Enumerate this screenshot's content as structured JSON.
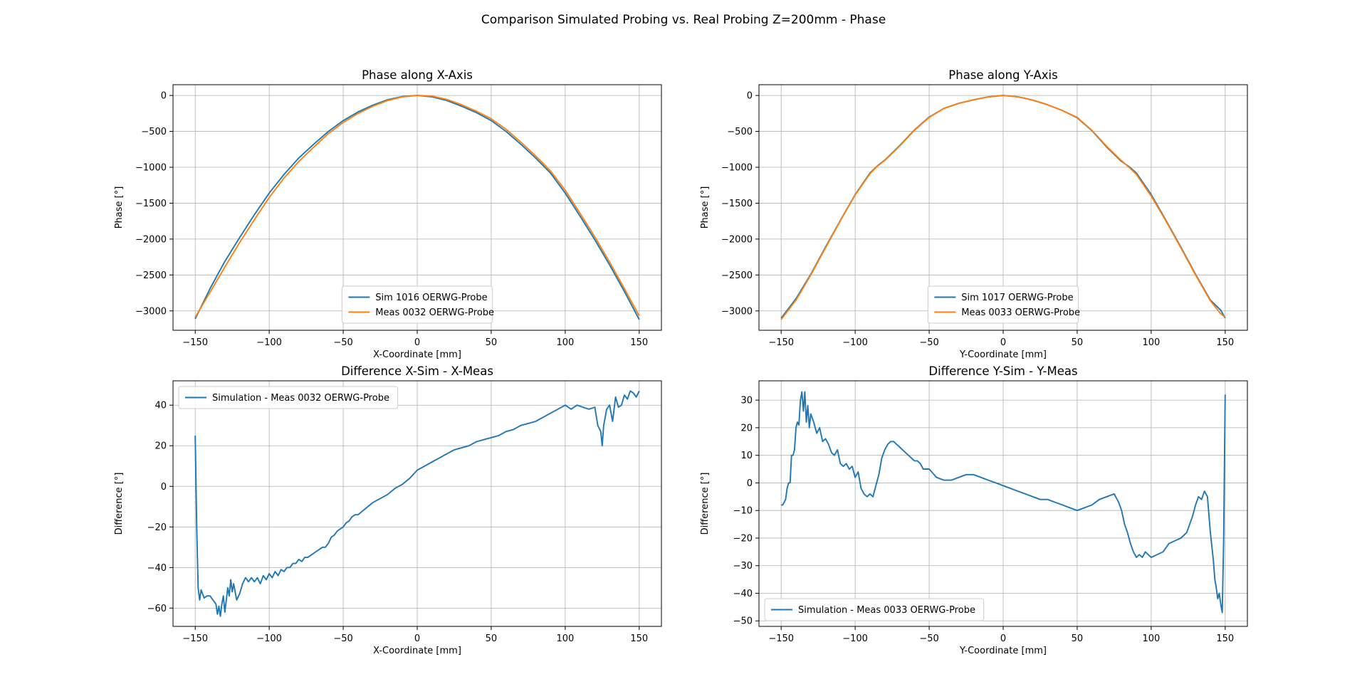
{
  "figure": {
    "suptitle": "Comparison Simulated Probing vs. Real Probing Z=200mm - Phase"
  },
  "colors": {
    "series1": "#1f77b4",
    "series2": "#ff7f0e",
    "grid": "#b0b0b0"
  },
  "chart_data": [
    {
      "type": "line",
      "title": "Phase along X-Axis",
      "xlabel": "X-Coordinate [mm]",
      "ylabel": "Phase [°]",
      "xlim": [
        -165,
        165
      ],
      "ylim": [
        -3270,
        150
      ],
      "xticks": [
        -150,
        -100,
        -50,
        0,
        50,
        100,
        150
      ],
      "xtick_labels": [
        "−150",
        "−100",
        "−50",
        "0",
        "50",
        "100",
        "150"
      ],
      "yticks": [
        0,
        -500,
        -1000,
        -1500,
        -2000,
        -2500,
        -3000
      ],
      "ytick_labels": [
        "0",
        "−500",
        "−1000",
        "−1500",
        "−2000",
        "−2500",
        "−3000"
      ],
      "grid": true,
      "legend": "lower center",
      "series": [
        {
          "name": "Sim 1016 OERWG-Probe",
          "x": [
            -150,
            -140,
            -130,
            -120,
            -110,
            -100,
            -90,
            -80,
            -70,
            -60,
            -50,
            -40,
            -30,
            -20,
            -10,
            0,
            10,
            20,
            30,
            40,
            50,
            60,
            70,
            80,
            90,
            100,
            110,
            120,
            130,
            140,
            150
          ],
          "y": [
            -3110,
            -2690,
            -2310,
            -1980,
            -1660,
            -1360,
            -1100,
            -870,
            -680,
            -500,
            -350,
            -230,
            -135,
            -60,
            -15,
            0,
            -20,
            -70,
            -150,
            -240,
            -350,
            -500,
            -680,
            -870,
            -1080,
            -1360,
            -1680,
            -2010,
            -2360,
            -2730,
            -3120
          ]
        },
        {
          "name": "Meas 0032 OERWG-Probe",
          "x": [
            -150,
            -140,
            -130,
            -120,
            -110,
            -100,
            -90,
            -80,
            -70,
            -60,
            -50,
            -40,
            -30,
            -20,
            -10,
            0,
            10,
            20,
            30,
            40,
            50,
            60,
            70,
            80,
            90,
            100,
            110,
            120,
            130,
            140,
            150
          ],
          "y": [
            -3090,
            -2740,
            -2390,
            -2050,
            -1730,
            -1420,
            -1150,
            -920,
            -720,
            -530,
            -375,
            -250,
            -150,
            -70,
            -20,
            0,
            -10,
            -55,
            -130,
            -220,
            -325,
            -470,
            -650,
            -840,
            -1050,
            -1320,
            -1640,
            -1970,
            -2320,
            -2690,
            -3070
          ]
        }
      ]
    },
    {
      "type": "line",
      "title": "Phase along Y-Axis",
      "xlabel": "Y-Coordinate [mm]",
      "ylabel": "Phase [°]",
      "xlim": [
        -165,
        165
      ],
      "ylim": [
        -3270,
        150
      ],
      "xticks": [
        -150,
        -100,
        -50,
        0,
        50,
        100,
        150
      ],
      "xtick_labels": [
        "−150",
        "−100",
        "−50",
        "0",
        "50",
        "100",
        "150"
      ],
      "yticks": [
        0,
        -500,
        -1000,
        -1500,
        -2000,
        -2500,
        -3000
      ],
      "ytick_labels": [
        "0",
        "−500",
        "−1000",
        "−1500",
        "−2000",
        "−2500",
        "−3000"
      ],
      "grid": true,
      "legend": "lower center",
      "series": [
        {
          "name": "Sim 1017 OERWG-Probe",
          "x": [
            -150,
            -140,
            -130,
            -120,
            -110,
            -100,
            -90,
            -85,
            -80,
            -70,
            -60,
            -50,
            -40,
            -30,
            -20,
            -10,
            0,
            10,
            20,
            30,
            40,
            50,
            60,
            70,
            80,
            85,
            90,
            100,
            110,
            120,
            130,
            140,
            147,
            150
          ],
          "y": [
            -3100,
            -2830,
            -2490,
            -2110,
            -1740,
            -1380,
            -1080,
            -980,
            -900,
            -700,
            -480,
            -300,
            -180,
            -110,
            -60,
            -20,
            0,
            -20,
            -65,
            -130,
            -210,
            -310,
            -490,
            -720,
            -920,
            -990,
            -1080,
            -1380,
            -1740,
            -2110,
            -2490,
            -2850,
            -2990,
            -3100
          ]
        },
        {
          "name": "Meas 0033 OERWG-Probe",
          "x": [
            -150,
            -140,
            -130,
            -120,
            -110,
            -100,
            -90,
            -85,
            -80,
            -70,
            -60,
            -50,
            -40,
            -30,
            -20,
            -10,
            0,
            10,
            20,
            30,
            40,
            50,
            60,
            70,
            80,
            85,
            90,
            100,
            110,
            120,
            130,
            140,
            147,
            150
          ],
          "y": [
            -3120,
            -2850,
            -2500,
            -2120,
            -1745,
            -1385,
            -1090,
            -985,
            -905,
            -705,
            -485,
            -305,
            -180,
            -110,
            -60,
            -20,
            0,
            -20,
            -65,
            -130,
            -210,
            -305,
            -485,
            -710,
            -910,
            -1000,
            -1100,
            -1400,
            -1750,
            -2120,
            -2500,
            -2860,
            -3040,
            -3090
          ]
        }
      ]
    },
    {
      "type": "line",
      "title": "Difference X-Sim - X-Meas",
      "xlabel": "X-Coordinate [mm]",
      "ylabel": "Difference [°]",
      "xlim": [
        -165,
        165
      ],
      "ylim": [
        -69,
        52
      ],
      "xticks": [
        -150,
        -100,
        -50,
        0,
        50,
        100,
        150
      ],
      "xtick_labels": [
        "−150",
        "−100",
        "−50",
        "0",
        "50",
        "100",
        "150"
      ],
      "yticks": [
        40,
        20,
        0,
        -20,
        -40,
        -60
      ],
      "ytick_labels": [
        "40",
        "20",
        "0",
        "−20",
        "−40",
        "−60"
      ],
      "grid": true,
      "legend": "upper left",
      "series": [
        {
          "name": "Simulation - Meas 0032 OERWG-Probe",
          "x": [
            -150,
            -149,
            -148,
            -147,
            -146,
            -144,
            -142,
            -140,
            -138,
            -136,
            -135,
            -134,
            -133,
            -132,
            -131,
            -130,
            -128,
            -127,
            -126,
            -125,
            -124,
            -122,
            -120,
            -118,
            -116,
            -114,
            -112,
            -110,
            -108,
            -106,
            -104,
            -102,
            -100,
            -98,
            -96,
            -94,
            -92,
            -90,
            -88,
            -86,
            -84,
            -82,
            -80,
            -78,
            -76,
            -74,
            -72,
            -70,
            -68,
            -66,
            -64,
            -62,
            -60,
            -58,
            -56,
            -54,
            -52,
            -50,
            -48,
            -46,
            -44,
            -42,
            -40,
            -35,
            -30,
            -25,
            -20,
            -15,
            -10,
            -5,
            0,
            5,
            10,
            15,
            20,
            25,
            30,
            35,
            40,
            45,
            50,
            55,
            60,
            65,
            70,
            75,
            80,
            85,
            90,
            95,
            100,
            104,
            108,
            112,
            116,
            120,
            122,
            124,
            125,
            126,
            128,
            130,
            132,
            134,
            136,
            138,
            140,
            142,
            144,
            146,
            148,
            150
          ],
          "y": [
            25,
            -20,
            -50,
            -56,
            -51,
            -55,
            -54,
            -54,
            -56,
            -58,
            -63,
            -59,
            -64,
            -58,
            -54,
            -62,
            -50,
            -54,
            -46,
            -52,
            -48,
            -56,
            -53,
            -48,
            -45,
            -47,
            -45,
            -47,
            -45,
            -48,
            -44,
            -46,
            -43,
            -45,
            -42,
            -44,
            -41,
            -42,
            -40,
            -40,
            -38,
            -38,
            -36,
            -37,
            -35,
            -35,
            -34,
            -33,
            -32,
            -31,
            -30,
            -30,
            -28,
            -25,
            -24,
            -22,
            -21,
            -20,
            -18,
            -17,
            -15,
            -14,
            -14,
            -11,
            -8,
            -6,
            -4,
            -1,
            1,
            4,
            8,
            10,
            12,
            14,
            16,
            18,
            19,
            20,
            22,
            23,
            24,
            25,
            27,
            28,
            30,
            31,
            32,
            34,
            36,
            38,
            40,
            38,
            40,
            39,
            38,
            39,
            30,
            27,
            20,
            30,
            38,
            40,
            32,
            44,
            39,
            40,
            45,
            43,
            47,
            46,
            44,
            47
          ]
        }
      ]
    },
    {
      "type": "line",
      "title": "Difference Y-Sim - Y-Meas",
      "xlabel": "Y-Coordinate [mm]",
      "ylabel": "Difference [°]",
      "xlim": [
        -165,
        165
      ],
      "ylim": [
        -52,
        37
      ],
      "xticks": [
        -150,
        -100,
        -50,
        0,
        50,
        100,
        150
      ],
      "xtick_labels": [
        "−150",
        "−100",
        "−50",
        "0",
        "50",
        "100",
        "150"
      ],
      "yticks": [
        30,
        20,
        10,
        0,
        -10,
        -20,
        -30,
        -40,
        -50
      ],
      "ytick_labels": [
        "30",
        "20",
        "10",
        "0",
        "−10",
        "−20",
        "−30",
        "−40",
        "−50"
      ],
      "grid": true,
      "legend": "lower left",
      "series": [
        {
          "name": "Simulation - Meas 0033 OERWG-Probe",
          "x": [
            -150,
            -149,
            -147,
            -146,
            -145,
            -144,
            -143,
            -142,
            -141,
            -140,
            -139,
            -138,
            -137,
            -136,
            -135,
            -134,
            -133,
            -132,
            -131,
            -130,
            -128,
            -126,
            -124,
            -122,
            -120,
            -118,
            -116,
            -114,
            -112,
            -110,
            -108,
            -106,
            -104,
            -102,
            -100,
            -98,
            -96,
            -94,
            -92,
            -90,
            -88,
            -86,
            -84,
            -82,
            -80,
            -78,
            -76,
            -74,
            -72,
            -70,
            -68,
            -66,
            -64,
            -62,
            -60,
            -58,
            -56,
            -54,
            -52,
            -50,
            -45,
            -40,
            -35,
            -30,
            -25,
            -20,
            -15,
            -10,
            -5,
            0,
            5,
            10,
            15,
            20,
            25,
            30,
            35,
            40,
            45,
            50,
            55,
            60,
            65,
            70,
            75,
            78,
            80,
            82,
            84,
            86,
            88,
            90,
            92,
            94,
            96,
            98,
            100,
            104,
            108,
            112,
            116,
            120,
            124,
            128,
            130,
            132,
            134,
            136,
            138,
            140,
            142,
            143,
            144,
            145,
            146,
            147,
            148,
            149,
            150
          ],
          "y": [
            -8,
            -8,
            -6,
            -2,
            0,
            0,
            10,
            10,
            12,
            20,
            22,
            21,
            30,
            33,
            26,
            33,
            22,
            28,
            20,
            25,
            22,
            18,
            20,
            15,
            16,
            14,
            11,
            10,
            12,
            7,
            6,
            7,
            5,
            6,
            2,
            4,
            -2,
            -4,
            -5,
            -4,
            -5,
            -1,
            3,
            9,
            12,
            14,
            15,
            15,
            14,
            13,
            12,
            11,
            10,
            9,
            8,
            8,
            7,
            5,
            5,
            5,
            2,
            1,
            1,
            2,
            3,
            3,
            2,
            1,
            0,
            -1,
            -2,
            -3,
            -4,
            -5,
            -6,
            -6,
            -7,
            -8,
            -9,
            -10,
            -9,
            -8,
            -6,
            -5,
            -4,
            -7,
            -10,
            -15,
            -18,
            -22,
            -25,
            -27,
            -26,
            -27,
            -25,
            -26,
            -27,
            -26,
            -25,
            -22,
            -21,
            -20,
            -18,
            -12,
            -8,
            -5,
            -6,
            -3,
            -5,
            -18,
            -28,
            -35,
            -38,
            -42,
            -40,
            -44,
            -47,
            -20,
            32
          ]
        }
      ]
    }
  ]
}
